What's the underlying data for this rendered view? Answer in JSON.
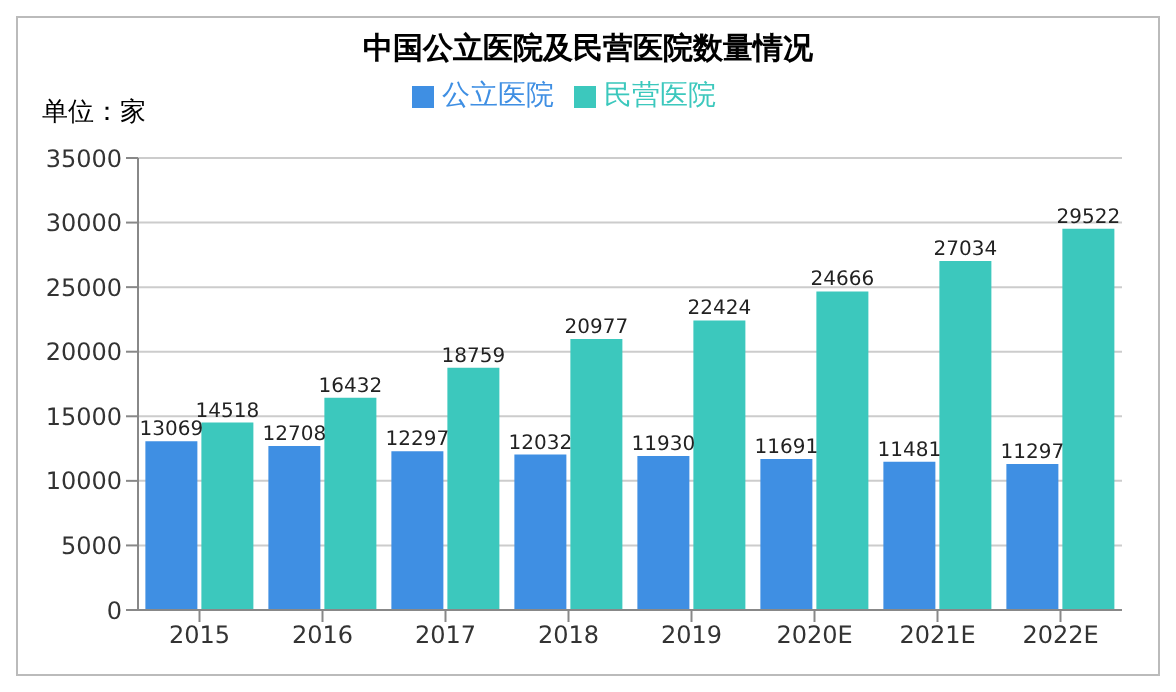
{
  "chart_data": {
    "type": "bar",
    "title": "中国公立医院及民营医院数量情况",
    "ylabel": "单位：家",
    "categories": [
      "2015",
      "2016",
      "2017",
      "2018",
      "2019",
      "2020E",
      "2021E",
      "2022E"
    ],
    "series": [
      {
        "name": "公立医院",
        "color": "#3f8fe3",
        "values": [
          13069,
          12708,
          12297,
          12032,
          11930,
          11691,
          11481,
          11297
        ]
      },
      {
        "name": "民营医院",
        "color": "#3cc8bd",
        "values": [
          14518,
          16432,
          18759,
          20977,
          22424,
          24666,
          27034,
          29522
        ]
      }
    ],
    "ylim": [
      0,
      35000
    ],
    "yticks": [
      0,
      5000,
      10000,
      15000,
      20000,
      25000,
      30000,
      35000
    ],
    "grid": "y",
    "legend": "top",
    "data_labels": true
  }
}
